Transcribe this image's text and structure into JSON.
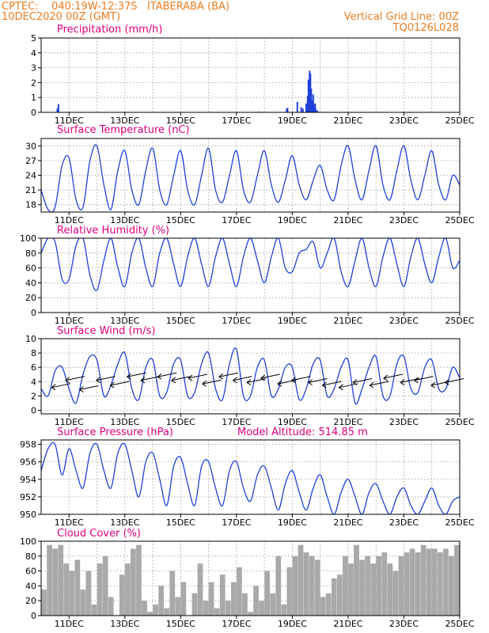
{
  "header": {
    "line1_left": "CPTEC:    040:19W-12:37S   ITABERABA (BA)",
    "line2_left": "10DEC2020 00Z (GMT)",
    "line2_right": "Vertical Grid Line: 00Z",
    "line3_right": "TQ0126L028",
    "color": "#f07c1e"
  },
  "colors": {
    "title": "#e0007e",
    "series": "#2040d8",
    "cloud": "#a9a9a9",
    "wind": "#000000"
  },
  "x_tick_labels": [
    "11DEC",
    "13DEC",
    "15DEC",
    "17DEC",
    "19DEC",
    "21DEC",
    "23DEC",
    "25DEC"
  ],
  "chart_data": [
    {
      "id": "precip",
      "type": "bar",
      "title": "Precipitation (mm/h)",
      "x_unit": "days since 10DEC2020 00Z",
      "xlim": [
        0,
        15
      ],
      "ylim": [
        0,
        5
      ],
      "yticks": [
        "0",
        "1",
        "2",
        "3",
        "4",
        "5"
      ],
      "grid": true,
      "series": [
        {
          "name": "Precipitation",
          "x": [
            0.58,
            0.62,
            7.8,
            8.8,
            8.83,
            9.18,
            9.32,
            9.38,
            9.5,
            9.55,
            9.58,
            9.62,
            9.65,
            9.68,
            9.72,
            9.75,
            9.78,
            9.82,
            9.85,
            9.9
          ],
          "values": [
            0.25,
            0.55,
            0.05,
            0.25,
            0.3,
            0.7,
            0.35,
            0.25,
            0.6,
            1.1,
            2.2,
            2.8,
            2.6,
            1.6,
            0.8,
            1.2,
            0.5,
            0.6,
            0.2,
            0.1
          ]
        }
      ]
    },
    {
      "id": "temp",
      "type": "line",
      "title": "Surface Temperature (nC)",
      "xlim": [
        0,
        15
      ],
      "ylim": [
        16.5,
        31.5
      ],
      "yticks": [
        "18",
        "21",
        "24",
        "27",
        "30"
      ],
      "grid": true,
      "series": [
        {
          "name": "Temperature",
          "x": [
            0,
            0.25,
            0.5,
            0.75,
            1,
            1.25,
            1.5,
            1.75,
            2,
            2.25,
            2.5,
            2.75,
            3,
            3.25,
            3.5,
            3.75,
            4,
            4.25,
            4.5,
            4.75,
            5,
            5.25,
            5.5,
            5.75,
            6,
            6.25,
            6.5,
            6.75,
            7,
            7.25,
            7.5,
            7.75,
            8,
            8.25,
            8.5,
            8.75,
            9,
            9.25,
            9.5,
            9.75,
            10,
            10.25,
            10.5,
            10.75,
            11,
            11.25,
            11.5,
            11.75,
            12,
            12.25,
            12.5,
            12.75,
            13,
            13.25,
            13.5,
            13.75,
            14,
            14.25,
            14.5,
            14.75,
            15
          ],
          "values": [
            21,
            17,
            17.5,
            26,
            27.5,
            19,
            17.5,
            27,
            30,
            22,
            17,
            25,
            29,
            21,
            18,
            25,
            29.5,
            21,
            18,
            24,
            29,
            21,
            18,
            24,
            29.5,
            21,
            18.5,
            24,
            29,
            21,
            18.5,
            24,
            29,
            22,
            18.5,
            23,
            28,
            22,
            19,
            23,
            26,
            21,
            19,
            26,
            30,
            23,
            19,
            25,
            30,
            22,
            19,
            25,
            30,
            23,
            19,
            24,
            29,
            22,
            19,
            24,
            22
          ]
        }
      ]
    },
    {
      "id": "rh",
      "type": "line",
      "title": "Relative Humidity (%)",
      "xlim": [
        0,
        15
      ],
      "ylim": [
        0,
        100
      ],
      "yticks": [
        "0",
        "20",
        "40",
        "60",
        "80",
        "100"
      ],
      "grid": true,
      "series": [
        {
          "name": "Relative Humidity",
          "x": [
            0,
            0.25,
            0.5,
            0.75,
            1,
            1.25,
            1.5,
            1.75,
            2,
            2.25,
            2.5,
            2.75,
            3,
            3.25,
            3.5,
            3.75,
            4,
            4.25,
            4.5,
            4.75,
            5,
            5.25,
            5.5,
            5.75,
            6,
            6.25,
            6.5,
            6.75,
            7,
            7.25,
            7.5,
            7.75,
            8,
            8.25,
            8.5,
            8.75,
            9,
            9.25,
            9.5,
            9.75,
            10,
            10.25,
            10.5,
            10.75,
            11,
            11.25,
            11.5,
            11.75,
            12,
            12.25,
            12.5,
            12.75,
            13,
            13.25,
            13.5,
            13.75,
            14,
            14.25,
            14.5,
            14.75,
            15
          ],
          "values": [
            80,
            100,
            95,
            45,
            45,
            90,
            100,
            50,
            30,
            70,
            100,
            60,
            35,
            80,
            100,
            60,
            35,
            80,
            100,
            65,
            35,
            75,
            100,
            65,
            35,
            75,
            100,
            65,
            35,
            75,
            100,
            70,
            40,
            75,
            100,
            60,
            55,
            80,
            85,
            95,
            60,
            80,
            100,
            55,
            35,
            70,
            100,
            60,
            35,
            75,
            100,
            65,
            35,
            75,
            100,
            65,
            40,
            75,
            100,
            60,
            70
          ]
        }
      ]
    },
    {
      "id": "wind",
      "type": "line",
      "title": "Surface Wind (m/s)",
      "xlim": [
        0,
        15
      ],
      "ylim": [
        -0.5,
        10
      ],
      "yticks": [
        "0",
        "2",
        "4",
        "6",
        "8",
        "10"
      ],
      "grid": true,
      "series": [
        {
          "name": "Wind speed",
          "x": [
            0,
            0.25,
            0.5,
            0.75,
            1,
            1.25,
            1.5,
            1.75,
            2,
            2.25,
            2.5,
            2.75,
            3,
            3.25,
            3.5,
            3.75,
            4,
            4.25,
            4.5,
            4.75,
            5,
            5.25,
            5.5,
            5.75,
            6,
            6.25,
            6.5,
            6.75,
            7,
            7.25,
            7.5,
            7.75,
            8,
            8.25,
            8.5,
            8.75,
            9,
            9.25,
            9.5,
            9.75,
            10,
            10.25,
            10.5,
            10.75,
            11,
            11.25,
            11.5,
            11.75,
            12,
            12.25,
            12.5,
            12.75,
            13,
            13.25,
            13.5,
            13.75,
            14,
            14.25,
            14.5,
            14.75,
            15
          ],
          "values": [
            3,
            2,
            5.5,
            6,
            3,
            1,
            5,
            7.5,
            7,
            2,
            3.5,
            6.5,
            8,
            3,
            1.5,
            6,
            7,
            2,
            2.5,
            6.5,
            7,
            2,
            2.5,
            6.5,
            8,
            3,
            1.5,
            6.5,
            8.5,
            2,
            2,
            6,
            7,
            2,
            3,
            6,
            6,
            1.5,
            3,
            6.5,
            7,
            2,
            3,
            6,
            7,
            1,
            3,
            6,
            7.5,
            2,
            2,
            6.5,
            7.5,
            3,
            2.5,
            6,
            7,
            3,
            3,
            6,
            4.5
          ],
          "arrows_x": [
            0.6,
            1.1,
            1.6,
            2.2,
            2.7,
            3.3,
            3.8,
            4.4,
            4.9,
            5.5,
            6.0,
            6.6,
            7.1,
            7.6,
            8.1,
            8.7,
            9.2,
            9.8,
            10.3,
            10.9,
            11.4,
            12.0,
            12.5,
            13.1,
            13.6,
            14.2,
            14.7
          ],
          "arrows_y": [
            3.5,
            4.5,
            3.2,
            4.5,
            3.8,
            5,
            4.5,
            5,
            4.5,
            4.8,
            4,
            5,
            4.5,
            4.2,
            4.8,
            4,
            4.5,
            4.2,
            3.8,
            3.5,
            4.2,
            3.8,
            4.8,
            4.2,
            4.5,
            3.8,
            4.2
          ]
        }
      ]
    },
    {
      "id": "press",
      "type": "line",
      "title": "Surface Pressure (hPa)",
      "annotation": "Model Altitude: 514.85 m",
      "xlim": [
        0,
        15
      ],
      "ylim": [
        950,
        958.5
      ],
      "yticks": [
        "950",
        "952",
        "954",
        "956",
        "958"
      ],
      "grid": true,
      "series": [
        {
          "name": "Surface Pressure",
          "x": [
            0,
            0.25,
            0.5,
            0.75,
            1,
            1.25,
            1.5,
            1.75,
            2,
            2.25,
            2.5,
            2.75,
            3,
            3.25,
            3.5,
            3.75,
            4,
            4.25,
            4.5,
            4.75,
            5,
            5.25,
            5.5,
            5.75,
            6,
            6.25,
            6.5,
            6.75,
            7,
            7.25,
            7.5,
            7.75,
            8,
            8.25,
            8.5,
            8.75,
            9,
            9.25,
            9.5,
            9.75,
            10,
            10.25,
            10.5,
            10.75,
            11,
            11.25,
            11.5,
            11.75,
            12,
            12.25,
            12.5,
            12.75,
            13,
            13.25,
            13.5,
            13.75,
            14,
            14.25,
            14.5,
            14.75,
            15
          ],
          "values": [
            955,
            957.5,
            958,
            954.5,
            957.5,
            955,
            953,
            957,
            958,
            955,
            953,
            957,
            958,
            955,
            952,
            956,
            957,
            954,
            951,
            955.5,
            956.5,
            953.5,
            951,
            955.5,
            956,
            953,
            951,
            955,
            956,
            953,
            951.5,
            954.5,
            955.5,
            953,
            950.5,
            953.5,
            955,
            952.5,
            950.5,
            953,
            954.5,
            952,
            950,
            952.5,
            954,
            952,
            950,
            952.5,
            953.5,
            951.5,
            950,
            952,
            953,
            951,
            950,
            951.5,
            953,
            951,
            950,
            951.5,
            952
          ]
        }
      ]
    },
    {
      "id": "cloud",
      "type": "bar",
      "title": "Cloud Cover (%)",
      "xlim": [
        0,
        15
      ],
      "ylim": [
        0,
        100
      ],
      "yticks": [
        "0",
        "20",
        "40",
        "60",
        "80",
        "100"
      ],
      "grid": true,
      "series": [
        {
          "name": "Cloud Cover",
          "x": [
            0.1,
            0.3,
            0.5,
            0.7,
            0.9,
            1.1,
            1.3,
            1.5,
            1.7,
            1.9,
            2.1,
            2.3,
            2.5,
            2.7,
            2.9,
            3.1,
            3.3,
            3.5,
            3.7,
            3.9,
            4.1,
            4.3,
            4.5,
            4.7,
            4.9,
            5.1,
            5.3,
            5.5,
            5.7,
            5.9,
            6.1,
            6.3,
            6.5,
            6.7,
            6.9,
            7.1,
            7.3,
            7.5,
            7.7,
            7.9,
            8.1,
            8.3,
            8.5,
            8.7,
            8.9,
            9.1,
            9.3,
            9.5,
            9.7,
            9.9,
            10.1,
            10.3,
            10.5,
            10.7,
            10.9,
            11.1,
            11.3,
            11.5,
            11.7,
            11.9,
            12.1,
            12.3,
            12.5,
            12.7,
            12.9,
            13.1,
            13.3,
            13.5,
            13.7,
            13.9,
            14.1,
            14.3,
            14.5,
            14.7,
            14.9
          ],
          "values": [
            35,
            95,
            90,
            95,
            70,
            60,
            75,
            35,
            60,
            15,
            70,
            80,
            25,
            0,
            55,
            70,
            90,
            95,
            20,
            5,
            15,
            40,
            10,
            60,
            25,
            45,
            0,
            30,
            70,
            20,
            45,
            10,
            55,
            20,
            45,
            65,
            30,
            5,
            40,
            20,
            60,
            30,
            80,
            15,
            65,
            80,
            95,
            85,
            80,
            75,
            25,
            30,
            50,
            55,
            80,
            70,
            95,
            75,
            80,
            70,
            80,
            85,
            70,
            60,
            80,
            85,
            90,
            85,
            95,
            90,
            90,
            85,
            90,
            80,
            95
          ]
        }
      ]
    }
  ]
}
